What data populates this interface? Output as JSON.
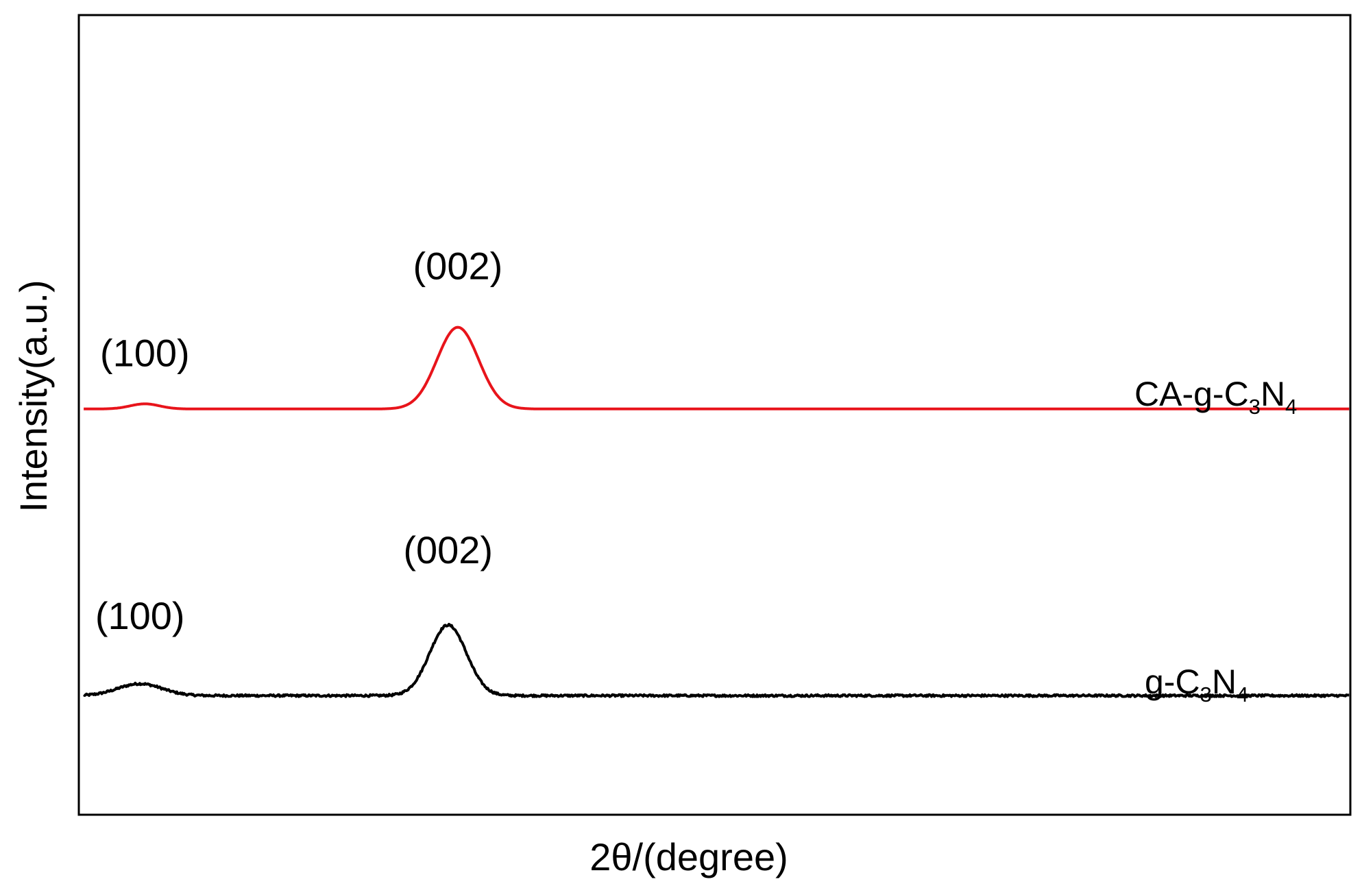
{
  "chart_data": {
    "type": "line",
    "title": "",
    "xlabel": "2θ/(degree)",
    "ylabel": "Intensity(a.u.)",
    "xlim": [
      8,
      60
    ],
    "ylim": [
      -1.4,
      8.0
    ],
    "xticks": false,
    "yticks": false,
    "grid": false,
    "legend": "none",
    "series": [
      {
        "name_text": "CA-g-C",
        "name_sub1": "3",
        "name_mid": "N",
        "name_sub2": "4",
        "color": "#e8141b",
        "baseline": 3.37,
        "peaks": [
          {
            "label": "(100)",
            "center": 10.7,
            "height": 0.06,
            "width": 0.6
          },
          {
            "label": "(002)",
            "center": 23.5,
            "height": 0.96,
            "width": 0.85
          }
        ],
        "noise": 0.0
      },
      {
        "name_text": "g-C",
        "name_sub1": "3",
        "name_mid": "N",
        "name_sub2": "4",
        "color": "#000000",
        "baseline": 0.0,
        "peaks": [
          {
            "label": "(100)",
            "center": 10.5,
            "height": 0.14,
            "width": 0.9
          },
          {
            "label": "(002)",
            "center": 23.1,
            "height": 0.83,
            "width": 0.75
          }
        ],
        "noise": 0.012
      }
    ]
  }
}
